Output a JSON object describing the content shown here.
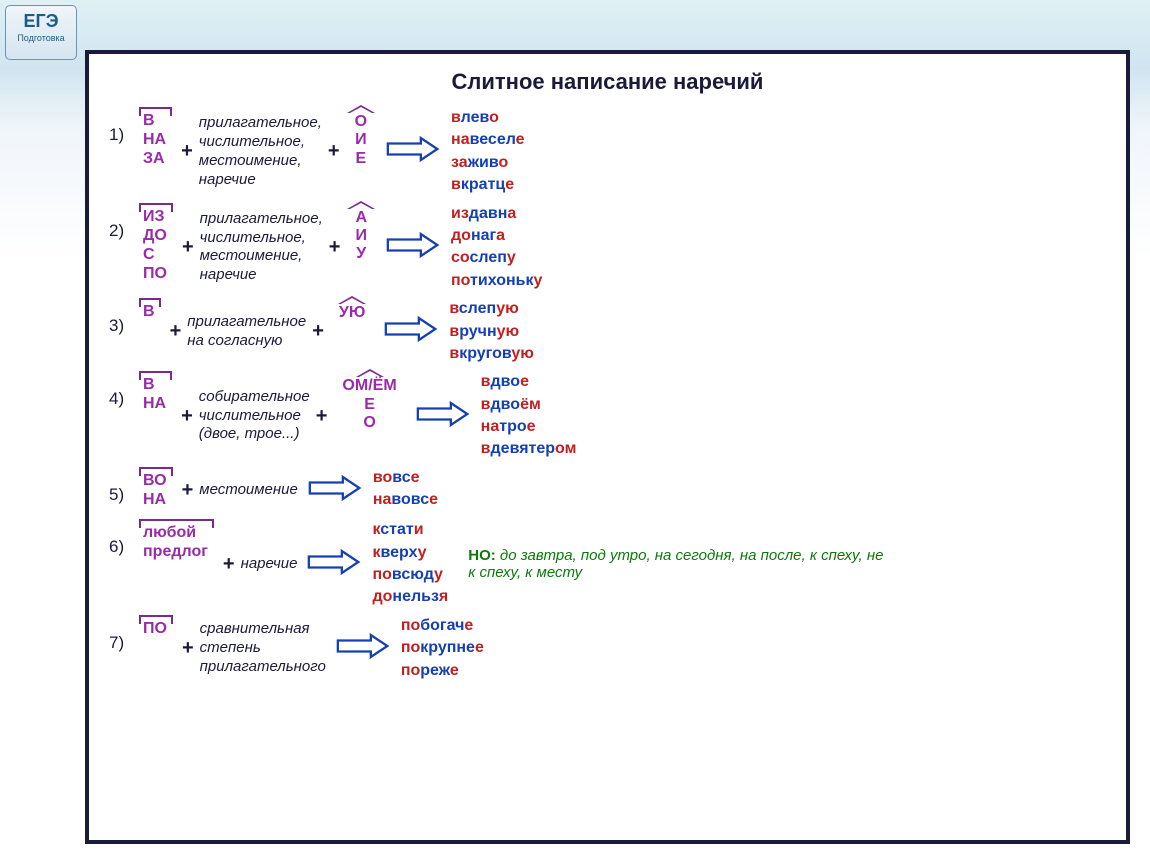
{
  "badge": {
    "top": "ЕГЭ",
    "bottom": "Подготовка"
  },
  "title": "Слитное написание наречий",
  "arrow_stroke": "#1540b0",
  "rules": [
    {
      "num": "1)",
      "prefixes": [
        "В",
        "НА",
        "ЗА"
      ],
      "desc": "прилагательное,\nчислительное,\nместоимение,\nнаречие",
      "suffixes": [
        "О",
        "И",
        "Е"
      ],
      "examples": [
        {
          "p": "в",
          "m": "лев",
          "s": "о"
        },
        {
          "p": "на",
          "m": "весел",
          "s": "е"
        },
        {
          "p": "за",
          "m": "жив",
          "s": "о"
        },
        {
          "p": "в",
          "m": "кратц",
          "s": "е"
        }
      ]
    },
    {
      "num": "2)",
      "prefixes": [
        "ИЗ",
        "ДО",
        "С",
        "ПО"
      ],
      "desc": "прилагательное,\nчислительное,\nместоимение,\nнаречие",
      "suffixes": [
        "А",
        "И",
        "У"
      ],
      "examples": [
        {
          "p": "из",
          "m": "давн",
          "s": "а"
        },
        {
          "p": "до",
          "m": "наг",
          "s": "а"
        },
        {
          "p": "со",
          "m": "слеп",
          "s": "у"
        },
        {
          "p": "по",
          "m": "тихоньк",
          "s": "у"
        }
      ]
    },
    {
      "num": "3)",
      "prefixes": [
        "В"
      ],
      "desc": "прилагательное\nна согласную",
      "suffixes": [
        "УЮ"
      ],
      "examples": [
        {
          "p": "в",
          "m": "слеп",
          "s": "ую"
        },
        {
          "p": "в",
          "m": "ручн",
          "s": "ую"
        },
        {
          "p": "в",
          "m": "кругов",
          "s": "ую"
        }
      ]
    },
    {
      "num": "4)",
      "prefixes": [
        "В",
        "НА"
      ],
      "desc": "собирательное\nчислительное\n(двое, трое...)",
      "suffixes": [
        "ОМ/ЁМ",
        "Е",
        "О"
      ],
      "examples": [
        {
          "p": "в",
          "m": "дво",
          "s": "е"
        },
        {
          "p": "в",
          "m": "дво",
          "s": "ём"
        },
        {
          "p": "на",
          "m": "тро",
          "s": "е"
        },
        {
          "p": "в",
          "m": "девятер",
          "s": "ом"
        }
      ]
    },
    {
      "num": "5)",
      "prefixes": [
        "ВО",
        "НА"
      ],
      "desc": "местоимение",
      "suffixes": null,
      "examples": [
        {
          "p": "во",
          "m": "вс",
          "s": "е"
        },
        {
          "p": "на",
          "m": "вовс",
          "s": "е"
        }
      ]
    },
    {
      "num": "6)",
      "prefixes": [
        "любой",
        "предлог"
      ],
      "desc": "наречие",
      "suffixes": null,
      "examples": [
        {
          "p": "к",
          "m": "стат",
          "s": "и"
        },
        {
          "p": "к",
          "m": "верх",
          "s": "у"
        },
        {
          "p": "по",
          "m": "всюд",
          "s": "у"
        },
        {
          "p": "до",
          "m": "нельз",
          "s": "я"
        }
      ],
      "note_label": "НО:",
      "note": " до завтра, под утро, на сегодня, на после, к спеху, не к спеху, к месту"
    },
    {
      "num": "7)",
      "prefixes": [
        "ПО"
      ],
      "desc": "сравнительная\nстепень\nприлагательного",
      "suffixes": null,
      "examples": [
        {
          "p": "по",
          "m": "богач",
          "s": "е"
        },
        {
          "p": "по",
          "m": "крупне",
          "s": "е"
        },
        {
          "p": "по",
          "m": "реж",
          "s": "е"
        }
      ]
    }
  ]
}
